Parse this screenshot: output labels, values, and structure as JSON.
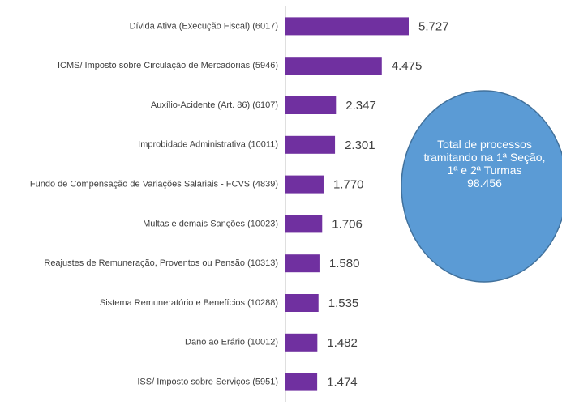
{
  "chart_data": {
    "type": "bar",
    "orientation": "horizontal",
    "categories": [
      "Dívida Ativa (Execução Fiscal) (6017)",
      "ICMS/ Imposto sobre Circulação de Mercadorias (5946)",
      "Auxílio-Acidente (Art. 86) (6107)",
      "Improbidade Administrativa (10011)",
      "Fundo de Compensação de Variações Salariais - FCVS (4839)",
      "Multas e demais Sanções (10023)",
      "Reajustes de Remuneração, Proventos ou Pensão (10313)",
      "Sistema Remuneratório e Benefícios (10288)",
      "Dano ao Erário (10012)",
      "ISS/ Imposto sobre Serviços (5951)"
    ],
    "values": [
      5727,
      4475,
      2347,
      2301,
      1770,
      1706,
      1580,
      1535,
      1482,
      1474
    ],
    "value_labels": [
      "5.727",
      "4.475",
      "2.347",
      "2.301",
      "1.770",
      "1.706",
      "1.580",
      "1.535",
      "1.482",
      "1.474"
    ],
    "color": "#7030a0",
    "annotation": {
      "text": "Total de processos tramitando na 1ª Seção, 1ª e 2ª Turmas",
      "value": 98456,
      "value_label": "98.456"
    }
  }
}
